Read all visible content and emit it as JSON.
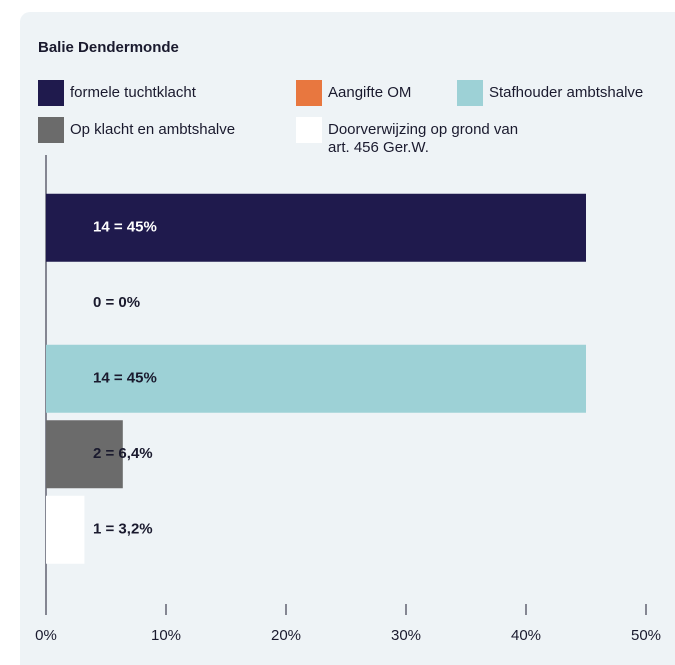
{
  "chart_data": {
    "type": "bar",
    "orientation": "horizontal",
    "title": "Balie Dendermonde",
    "categories": [
      "formele tuchtklacht",
      "Aangifte OM",
      "Stafhouder ambtshalve",
      "Op klacht en ambtshalve",
      "Doorverwijzing op grond van art. 456 Ger.W."
    ],
    "series": [
      {
        "name": "Balie Dendermonde",
        "colors": [
          "#1f1a4d",
          "#e8773f",
          "#9dd1d6",
          "#6b6b6b",
          "#ffffff"
        ],
        "values": [
          45,
          0,
          45,
          6.4,
          3.2
        ],
        "value_labels": [
          "14 = 45%",
          "0 = 0%",
          "14 = 45%",
          "2 = 6,4%",
          "1 = 3,2%"
        ]
      }
    ],
    "xlim": [
      0,
      50
    ],
    "xticks": [
      {
        "value": 0,
        "label": "0%"
      },
      {
        "value": 10,
        "label": "10%"
      },
      {
        "value": 20,
        "label": "20%"
      },
      {
        "value": 30,
        "label": "30%"
      },
      {
        "value": 40,
        "label": "40%"
      },
      {
        "value": 50,
        "label": "50%"
      }
    ],
    "grid": false
  }
}
